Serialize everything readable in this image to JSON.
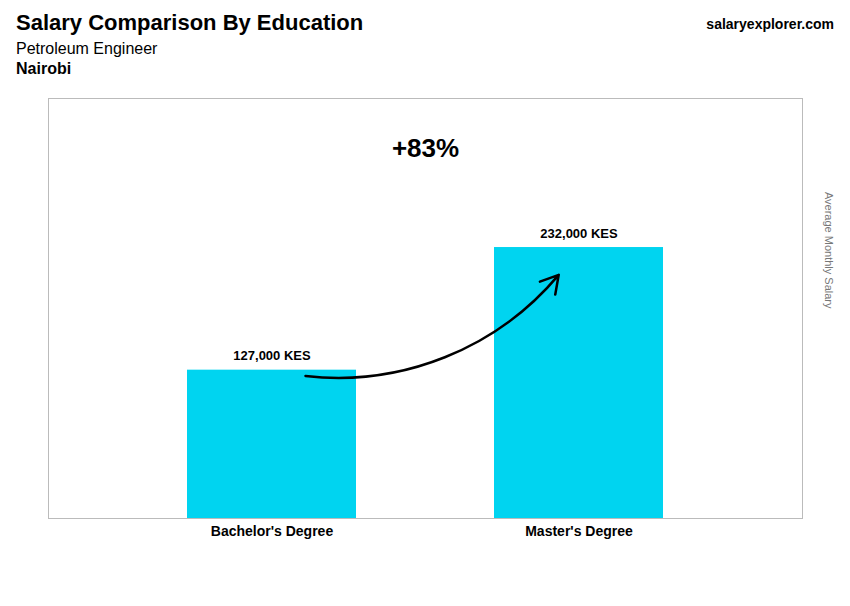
{
  "chart_data": {
    "type": "bar",
    "title": "Salary Comparison By Education",
    "subtitle": "Petroleum Engineer",
    "annotations": [
      "Nairobi",
      "salaryexplorer.com",
      "+83%"
    ],
    "ylabel": "Average Monthly Salary",
    "categories": [
      "Bachelor's Degree",
      "Master's Degree"
    ],
    "values": [
      127000,
      232000
    ],
    "value_labels": [
      "127,000 KES",
      "232,000 KES"
    ],
    "color": "#00d4f0",
    "ylim": [
      0,
      359600
    ],
    "yticks": [],
    "tick_labels": "x",
    "data_labels": true,
    "grid": false
  }
}
